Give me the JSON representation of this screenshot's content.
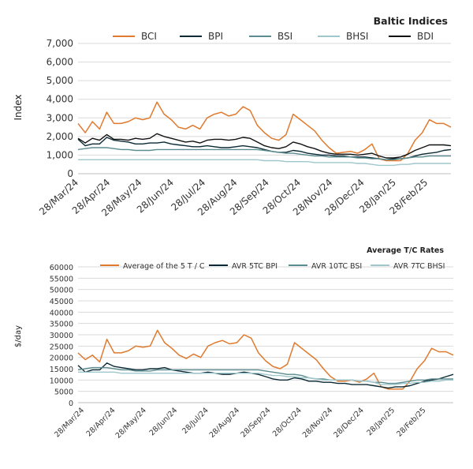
{
  "chart_data": [
    {
      "type": "line",
      "title": "Baltic Indices",
      "ylabel": "Index",
      "xlabel": "",
      "ylim": [
        0,
        7000
      ],
      "yticks": [
        "0",
        "1,000",
        "2,000",
        "3,000",
        "4,000",
        "5,000",
        "6,000",
        "7,000"
      ],
      "x_tick_labels": [
        "28/Mar/24",
        "28/Apr/24",
        "28/May/24",
        "28/Jun/24",
        "28/Jul/24",
        "28/Aug/24",
        "28/Sep/24",
        "28/Oct/24",
        "28/Nov/24",
        "28/Dec/24",
        "28/Jan/25",
        "28/Feb/25"
      ],
      "grid": true,
      "legend": "top",
      "series": [
        {
          "name": "BCI",
          "color": "#E07A2E",
          "values": [
            2700,
            2200,
            2800,
            2400,
            3300,
            2700,
            2700,
            2800,
            3000,
            2900,
            3000,
            3850,
            3200,
            2900,
            2500,
            2400,
            2600,
            2400,
            3000,
            3200,
            3300,
            3100,
            3200,
            3600,
            3400,
            2600,
            2200,
            1900,
            1800,
            2100,
            3200,
            2900,
            2600,
            2300,
            1800,
            1400,
            1100,
            1150,
            1200,
            1100,
            1300,
            1600,
            800,
            700,
            700,
            700,
            1100,
            1800,
            2200,
            2900,
            2700,
            2700,
            2500
          ]
        },
        {
          "name": "BPI",
          "color": "#0B2A35",
          "values": [
            1850,
            1500,
            1600,
            1600,
            1950,
            1800,
            1750,
            1700,
            1600,
            1600,
            1650,
            1650,
            1700,
            1600,
            1550,
            1500,
            1450,
            1450,
            1500,
            1450,
            1400,
            1400,
            1450,
            1500,
            1450,
            1400,
            1300,
            1200,
            1150,
            1150,
            1250,
            1200,
            1100,
            1050,
            1000,
            1000,
            950,
            950,
            900,
            900,
            900,
            850,
            800,
            750,
            800,
            800,
            850,
            950,
            1050,
            1100,
            1150,
            1250,
            1300
          ]
        },
        {
          "name": "BSI",
          "color": "#5B8C8F",
          "values": [
            1300,
            1350,
            1400,
            1400,
            1400,
            1350,
            1300,
            1300,
            1250,
            1250,
            1250,
            1300,
            1300,
            1300,
            1300,
            1300,
            1300,
            1300,
            1300,
            1300,
            1300,
            1300,
            1300,
            1300,
            1300,
            1300,
            1250,
            1200,
            1150,
            1100,
            1100,
            1050,
            1000,
            950,
            950,
            900,
            900,
            900,
            900,
            850,
            850,
            800,
            800,
            750,
            750,
            800,
            850,
            900,
            900,
            950,
            950,
            950,
            950
          ]
        },
        {
          "name": "BHSI",
          "color": "#9FC7CC",
          "values": [
            750,
            750,
            750,
            750,
            750,
            750,
            750,
            750,
            750,
            750,
            750,
            750,
            750,
            750,
            750,
            750,
            750,
            750,
            750,
            750,
            750,
            750,
            750,
            750,
            750,
            750,
            700,
            700,
            700,
            650,
            650,
            650,
            650,
            600,
            600,
            600,
            600,
            600,
            600,
            550,
            550,
            500,
            450,
            450,
            450,
            500,
            500,
            550,
            550,
            550,
            550,
            550,
            550
          ]
        },
        {
          "name": "BDI",
          "color": "#111111",
          "values": [
            1900,
            1650,
            1900,
            1800,
            2100,
            1850,
            1850,
            1800,
            1900,
            1850,
            1900,
            2150,
            2000,
            1900,
            1800,
            1700,
            1750,
            1650,
            1800,
            1850,
            1850,
            1800,
            1850,
            1950,
            1900,
            1700,
            1500,
            1400,
            1350,
            1450,
            1700,
            1600,
            1450,
            1350,
            1200,
            1100,
            1050,
            1050,
            1050,
            1000,
            1050,
            1100,
            950,
            850,
            850,
            900,
            1050,
            1250,
            1400,
            1550,
            1550,
            1550,
            1500
          ]
        }
      ]
    },
    {
      "type": "line",
      "title": "Average T/C Rates",
      "ylabel": "$/day",
      "xlabel": "",
      "ylim": [
        0,
        60000
      ],
      "yticks": [
        "0",
        "5000",
        "10000",
        "15000",
        "20000",
        "25000",
        "30000",
        "35000",
        "40000",
        "45000",
        "50000",
        "55000",
        "60000"
      ],
      "x_tick_labels": [
        "28/Mar/24",
        "28/Apr/24",
        "28/May/24",
        "28/Jun/24",
        "28/Jul/24",
        "28/Aug/24",
        "28/Sep/24",
        "28/Oct/24",
        "28/Nov/24",
        "28/Dec/24",
        "28/Jan/25",
        "28/Feb/25"
      ],
      "grid": true,
      "legend": "top",
      "series": [
        {
          "name": "Average of the 5 T / C",
          "color": "#E07A2E",
          "values": [
            22000,
            19000,
            21000,
            18000,
            28000,
            22000,
            22000,
            23000,
            25000,
            24500,
            25000,
            32000,
            26500,
            24000,
            21000,
            19500,
            21500,
            20000,
            25000,
            26500,
            27500,
            26000,
            26500,
            30000,
            28500,
            22000,
            18500,
            16000,
            15000,
            17000,
            26500,
            24000,
            21500,
            19000,
            15000,
            11500,
            9500,
            9500,
            10000,
            9000,
            10500,
            13000,
            7000,
            6000,
            6000,
            6000,
            9500,
            15000,
            18500,
            24000,
            22500,
            22500,
            21000
          ]
        },
        {
          "name": "AVR 5TC BPI",
          "color": "#0B2A35",
          "values": [
            16500,
            13500,
            14500,
            14500,
            17500,
            16000,
            15500,
            15000,
            14500,
            14500,
            15000,
            15000,
            15500,
            14500,
            14000,
            13500,
            13000,
            13000,
            13500,
            13000,
            12500,
            12500,
            13000,
            13500,
            13000,
            12500,
            11500,
            10500,
            10000,
            10000,
            11000,
            10500,
            9500,
            9500,
            9000,
            9000,
            8500,
            8500,
            8000,
            8000,
            8000,
            7500,
            7000,
            6500,
            7000,
            7000,
            7500,
            8500,
            9500,
            10000,
            10500,
            11500,
            12500
          ]
        },
        {
          "name": "AVR 10TC BSI",
          "color": "#5B8C8F",
          "values": [
            14500,
            15000,
            15500,
            15500,
            15500,
            15000,
            14500,
            14500,
            14000,
            14000,
            14000,
            14500,
            14500,
            14500,
            14500,
            14500,
            14500,
            14500,
            14500,
            14500,
            14500,
            14500,
            14500,
            14500,
            14500,
            14500,
            14000,
            13500,
            13000,
            12500,
            12500,
            12000,
            11000,
            10500,
            10500,
            10000,
            10000,
            10000,
            10000,
            9500,
            9500,
            9000,
            9000,
            8500,
            8500,
            9000,
            9500,
            10000,
            10000,
            10500,
            10500,
            10500,
            10500
          ]
        },
        {
          "name": "AVR 7TC BHSI",
          "color": "#9FC7CC",
          "values": [
            13500,
            13500,
            13500,
            13500,
            13500,
            13500,
            13000,
            13000,
            13000,
            13000,
            13000,
            13000,
            13000,
            13000,
            13000,
            13000,
            13000,
            13000,
            13000,
            13000,
            13000,
            13000,
            13000,
            13000,
            13000,
            13000,
            12500,
            12000,
            12000,
            11500,
            11500,
            11000,
            11000,
            10500,
            10000,
            10000,
            10000,
            10000,
            10000,
            9500,
            9500,
            9000,
            8000,
            8000,
            8000,
            8500,
            8500,
            9000,
            9000,
            9500,
            9500,
            10000,
            10000
          ]
        }
      ]
    }
  ]
}
